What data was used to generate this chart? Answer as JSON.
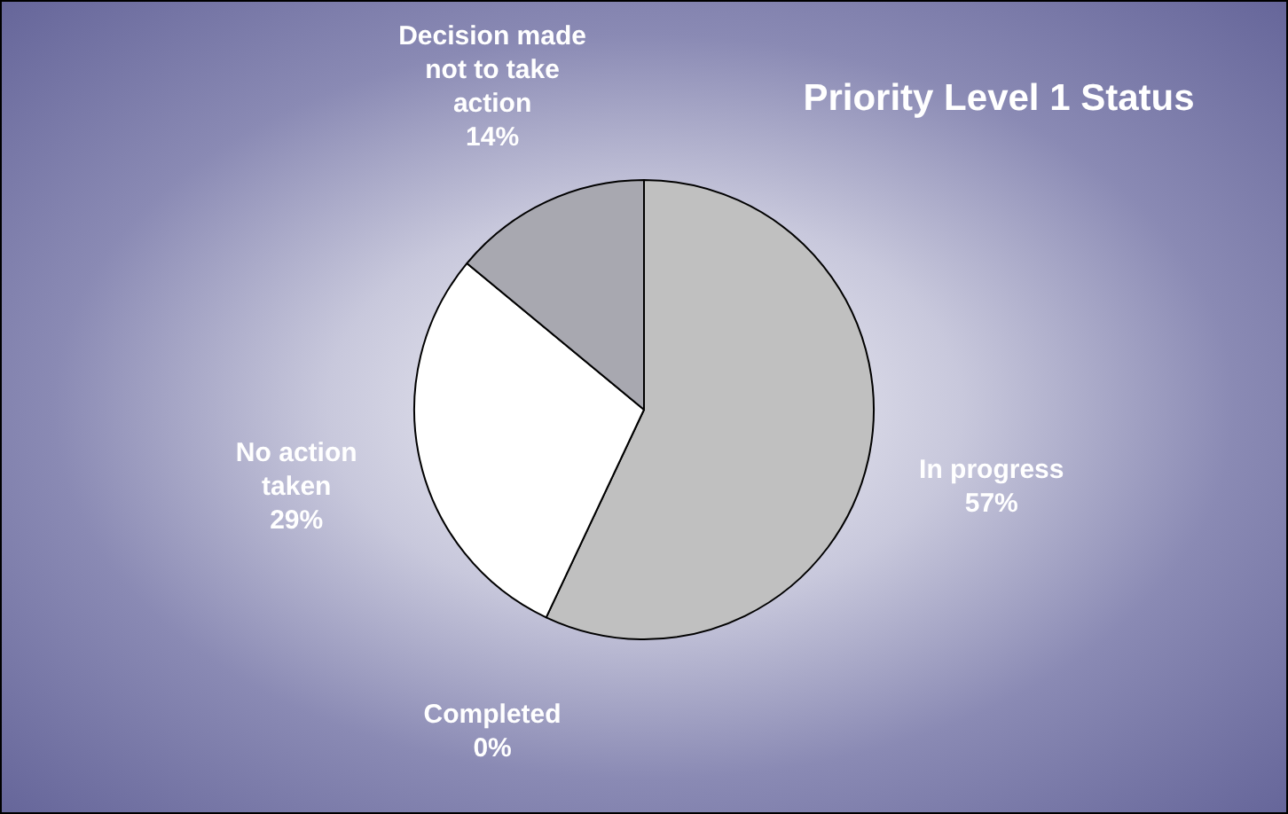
{
  "chart_data": {
    "type": "pie",
    "title": "Priority Level 1 Status",
    "categories": [
      "In progress",
      "Completed",
      "No action taken",
      "Decision made not to take action"
    ],
    "values": [
      57,
      0,
      29,
      14
    ],
    "value_labels": [
      "57%",
      "0%",
      "29%",
      "14%"
    ],
    "colors": [
      "#c0c0c0",
      "#e0e0e0",
      "#ffffff",
      "#a8a8b0"
    ],
    "legend": false
  }
}
